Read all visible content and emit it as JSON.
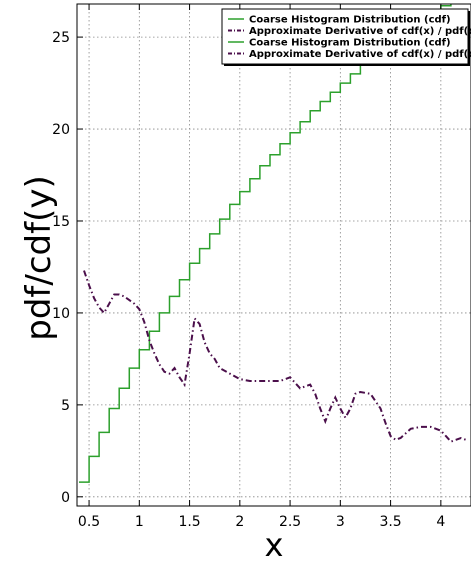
{
  "chart_data": {
    "type": "line",
    "title": "",
    "xlabel": "x",
    "ylabel": "pdf/cdf(y)",
    "xlim": [
      0.38,
      4.3
    ],
    "ylim": [
      -0.5,
      26.8
    ],
    "xticks": [
      0.5,
      1,
      1.5,
      2,
      2.5,
      3,
      3.5,
      4
    ],
    "xtick_labels": [
      "0.5",
      "1",
      "1.5",
      "2",
      "2.5",
      "3",
      "3.5",
      "4"
    ],
    "yticks": [
      0,
      5,
      10,
      15,
      20,
      25
    ],
    "ytick_labels": [
      "0",
      "5",
      "10",
      "15",
      "20",
      "25"
    ],
    "grid": true,
    "legend_position": "top-right",
    "legend": [
      {
        "label": "Coarse Histogram Distribution (cdf)",
        "color": "#2ca02c",
        "style": "solid"
      },
      {
        "label": "Approximate Derivative of cdf(x) / pdf(x)",
        "color": "#4b0f4b",
        "style": "dashdot"
      },
      {
        "label": "Coarse Histogram Distribution (cdf)",
        "color": "#2ca02c",
        "style": "solid"
      },
      {
        "label": "Approximate Derivative of cdf(x) / pdf(x)",
        "color": "#4b0f4b",
        "style": "dashdot"
      }
    ],
    "series": [
      {
        "name": "Coarse Histogram Distribution (cdf)",
        "color": "#2ca02c",
        "style": "step",
        "x": [
          0.45,
          0.55,
          0.65,
          0.75,
          0.85,
          0.95,
          1.05,
          1.15,
          1.25,
          1.35,
          1.45,
          1.55,
          1.65,
          1.75,
          1.85,
          1.95,
          2.05,
          2.15,
          2.25,
          2.35,
          2.45,
          2.55,
          2.65,
          2.75,
          2.85,
          2.95,
          3.05,
          3.15,
          3.25,
          3.35,
          3.45,
          3.55,
          3.65,
          3.75,
          3.85,
          3.95,
          4.05,
          4.15,
          4.25
        ],
        "y": [
          0.8,
          2.2,
          3.5,
          4.8,
          5.9,
          7.0,
          8.0,
          9.0,
          10.0,
          10.9,
          11.8,
          12.7,
          13.5,
          14.3,
          15.1,
          15.9,
          16.6,
          17.3,
          18.0,
          18.6,
          19.2,
          19.8,
          20.4,
          21.0,
          21.5,
          22.0,
          22.5,
          23.0,
          23.5,
          23.9,
          24.4,
          24.8,
          25.2,
          25.6,
          26.0,
          26.3,
          26.7,
          27.0,
          27.3
        ]
      },
      {
        "name": "Approximate Derivative of cdf(x) / pdf(x)",
        "color": "#4b0f4b",
        "style": "dashdot",
        "x": [
          0.45,
          0.5,
          0.55,
          0.6,
          0.65,
          0.7,
          0.75,
          0.8,
          0.85,
          0.9,
          0.95,
          1.0,
          1.05,
          1.1,
          1.15,
          1.2,
          1.25,
          1.3,
          1.35,
          1.4,
          1.45,
          1.5,
          1.55,
          1.6,
          1.65,
          1.7,
          1.75,
          1.8,
          1.9,
          2.0,
          2.1,
          2.2,
          2.3,
          2.4,
          2.5,
          2.6,
          2.7,
          2.75,
          2.8,
          2.85,
          2.9,
          2.95,
          3.0,
          3.05,
          3.1,
          3.15,
          3.2,
          3.3,
          3.4,
          3.45,
          3.5,
          3.55,
          3.6,
          3.7,
          3.8,
          3.9,
          4.0,
          4.05,
          4.1,
          4.15,
          4.2,
          4.25
        ],
        "y": [
          12.3,
          11.5,
          10.8,
          10.3,
          10.0,
          10.5,
          11.0,
          11.0,
          10.9,
          10.7,
          10.5,
          10.2,
          9.5,
          8.5,
          7.8,
          7.2,
          6.8,
          6.7,
          7.0,
          6.5,
          6.1,
          7.8,
          9.7,
          9.4,
          8.4,
          7.8,
          7.5,
          7.0,
          6.7,
          6.4,
          6.3,
          6.3,
          6.3,
          6.3,
          6.5,
          5.9,
          6.1,
          5.6,
          4.8,
          4.1,
          4.8,
          5.4,
          4.8,
          4.3,
          4.8,
          5.6,
          5.7,
          5.6,
          4.8,
          4.0,
          3.3,
          3.1,
          3.2,
          3.7,
          3.8,
          3.8,
          3.6,
          3.3,
          3.0,
          3.1,
          3.2,
          3.1
        ]
      }
    ]
  }
}
